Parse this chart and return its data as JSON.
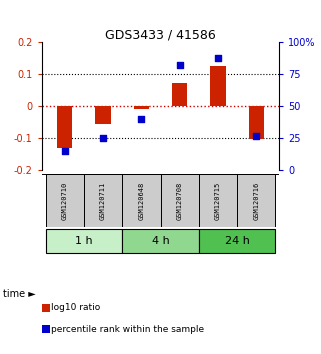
{
  "title": "GDS3433 / 41586",
  "samples": [
    "GSM120710",
    "GSM120711",
    "GSM120648",
    "GSM120708",
    "GSM120715",
    "GSM120716"
  ],
  "time_groups": [
    {
      "label": "1 h",
      "indices": [
        0,
        1
      ],
      "color": "#c8f0c8"
    },
    {
      "label": "4 h",
      "indices": [
        2,
        3
      ],
      "color": "#90d890"
    },
    {
      "label": "24 h",
      "indices": [
        4,
        5
      ],
      "color": "#50c050"
    }
  ],
  "log10_ratio": [
    -0.13,
    -0.055,
    -0.01,
    0.072,
    0.125,
    -0.102
  ],
  "percentile_rank": [
    15,
    25,
    40,
    82,
    88,
    27
  ],
  "ylim_left": [
    -0.2,
    0.2
  ],
  "ylim_right": [
    0,
    100
  ],
  "bar_color": "#cc2200",
  "dot_color": "#0000cc",
  "zero_line_color": "#cc0000",
  "title_color": "#000000",
  "left_tick_color": "#cc2200",
  "right_tick_color": "#0000cc",
  "sample_box_color": "#cccccc",
  "legend_bar_label": "log10 ratio",
  "legend_dot_label": "percentile rank within the sample"
}
